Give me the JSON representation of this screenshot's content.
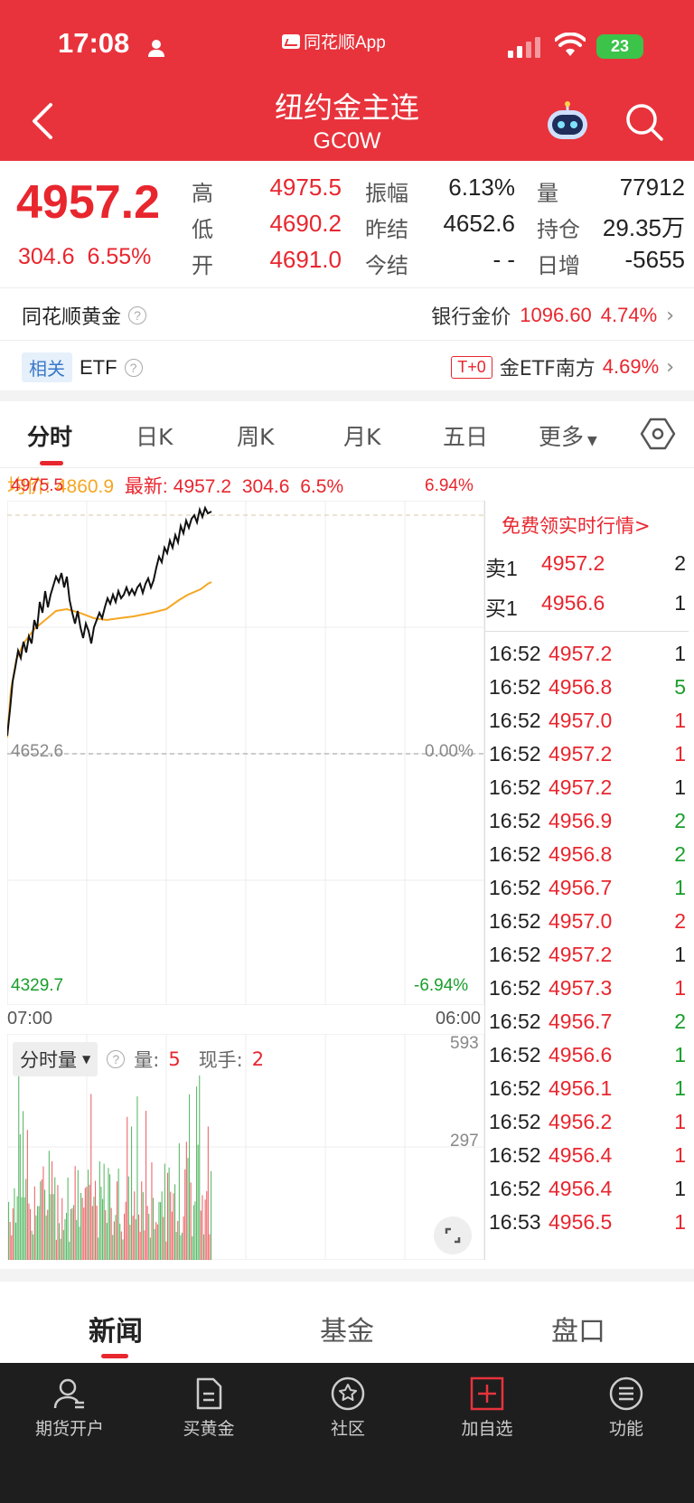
{
  "status_bar": {
    "time": "17:08",
    "app_name": "同花顺App",
    "battery": "23"
  },
  "header": {
    "title": "纽约金主连",
    "code": "GC0W"
  },
  "quote": {
    "last_price": "4957.2",
    "change": "304.6",
    "change_pct": "6.55%",
    "high_label": "高",
    "high": "4975.5",
    "low_label": "低",
    "low": "4690.2",
    "open_label": "开",
    "open": "4691.0",
    "amplitude_label": "振幅",
    "amplitude": "6.13%",
    "prev_settle_label": "昨结",
    "prev_settle": "4652.6",
    "today_settle_label": "今结",
    "today_settle": "- -",
    "volume_label": "量",
    "volume": "77912",
    "open_interest_label": "持仓",
    "open_interest": "29.35万",
    "daily_increase_label": "日增",
    "daily_increase": "-5655"
  },
  "gold_row": {
    "label": "同花顺黄金",
    "bank_label": "银行金价",
    "bank_price": "1096.60",
    "bank_pct": "4.74%"
  },
  "etf_row": {
    "tag": "相关",
    "label": "ETF",
    "t0": "T+0",
    "etf_name": "金ETF南方",
    "etf_pct": "4.69%"
  },
  "chart_tabs": [
    "分时",
    "日K",
    "周K",
    "月K",
    "五日",
    "更多"
  ],
  "info_bar": {
    "avg_label": "均价:",
    "avg": "4860.9",
    "latest_label": "最新:",
    "latest": "4957.2",
    "change": "304.6",
    "pct": "6.5%"
  },
  "chart_labels": {
    "top_price": "4975.5",
    "top_pct": "6.94%",
    "mid_price": "4652.6",
    "mid_pct": "0.00%",
    "bottom_price": "4329.7",
    "bottom_pct": "-6.94%",
    "start_time": "07:00",
    "end_time": "06:00"
  },
  "volume_panel": {
    "select": "分时量",
    "vol_label": "量:",
    "vol": "5",
    "hand_label": "现手:",
    "hand": "2",
    "max": "593",
    "mid": "297"
  },
  "order_book": {
    "promo": "免费领实时行情>",
    "sell": {
      "label": "卖1",
      "price": "4957.2",
      "qty": "2"
    },
    "buy": {
      "label": "买1",
      "price": "4956.6",
      "qty": "1"
    }
  },
  "ticks": [
    {
      "t": "16:52",
      "p": "4957.2",
      "q": "1",
      "qc": "black"
    },
    {
      "t": "16:52",
      "p": "4956.8",
      "q": "5",
      "qc": "green"
    },
    {
      "t": "16:52",
      "p": "4957.0",
      "q": "1",
      "qc": "red"
    },
    {
      "t": "16:52",
      "p": "4957.2",
      "q": "1",
      "qc": "red"
    },
    {
      "t": "16:52",
      "p": "4957.2",
      "q": "1",
      "qc": "black"
    },
    {
      "t": "16:52",
      "p": "4956.9",
      "q": "2",
      "qc": "green"
    },
    {
      "t": "16:52",
      "p": "4956.8",
      "q": "2",
      "qc": "green"
    },
    {
      "t": "16:52",
      "p": "4956.7",
      "q": "1",
      "qc": "green"
    },
    {
      "t": "16:52",
      "p": "4957.0",
      "q": "2",
      "qc": "red"
    },
    {
      "t": "16:52",
      "p": "4957.2",
      "q": "1",
      "qc": "black"
    },
    {
      "t": "16:52",
      "p": "4957.3",
      "q": "1",
      "qc": "red"
    },
    {
      "t": "16:52",
      "p": "4956.7",
      "q": "2",
      "qc": "green"
    },
    {
      "t": "16:52",
      "p": "4956.6",
      "q": "1",
      "qc": "green"
    },
    {
      "t": "16:52",
      "p": "4956.1",
      "q": "1",
      "qc": "green"
    },
    {
      "t": "16:52",
      "p": "4956.2",
      "q": "1",
      "qc": "red"
    },
    {
      "t": "16:52",
      "p": "4956.4",
      "q": "1",
      "qc": "red"
    },
    {
      "t": "16:52",
      "p": "4956.4",
      "q": "1",
      "qc": "black"
    },
    {
      "t": "16:53",
      "p": "4956.5",
      "q": "1",
      "qc": "red"
    }
  ],
  "bottom_tabs": [
    "新闻",
    "基金",
    "盘口"
  ],
  "nav": [
    {
      "label": "期货开户",
      "icon": "account-icon"
    },
    {
      "label": "买黄金",
      "icon": "document-icon"
    },
    {
      "label": "社区",
      "icon": "community-icon"
    },
    {
      "label": "加自选",
      "icon": "add-watchlist-icon"
    },
    {
      "label": "功能",
      "icon": "menu-icon"
    }
  ],
  "colors": {
    "brand_red": "#e8333c",
    "up": "#e8262e",
    "down": "#1a9e2c",
    "avg_line": "#f5a623"
  }
}
